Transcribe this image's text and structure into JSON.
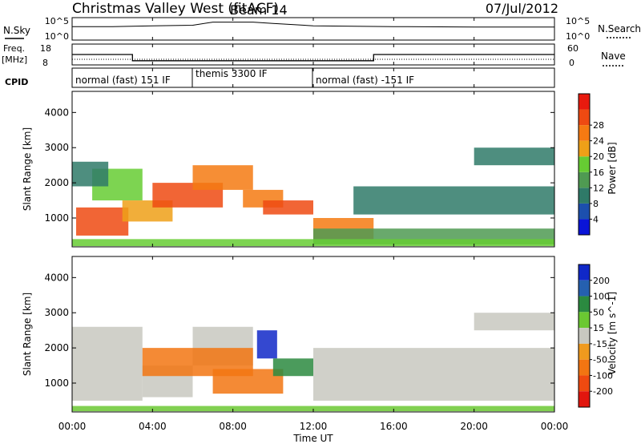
{
  "header": {
    "title": "Christmas Valley West (fitACF)",
    "beam": "Beam 14",
    "date": "07/Jul/2012"
  },
  "panels": {
    "nsky": {
      "label": "N.Sky",
      "right_label": "N.Search",
      "y_ticks": [
        "10^5",
        "10^0"
      ],
      "y_ticks_right": [
        "10^5",
        "10^0"
      ]
    },
    "freq": {
      "label_line1": "Freq.",
      "label_line2": "[MHz]",
      "right_label": "Nave",
      "y_ticks": [
        "18",
        "8"
      ],
      "y_ticks_right": [
        "60",
        "0"
      ]
    },
    "cpid": {
      "label": "CPID",
      "segments": [
        {
          "label": "normal (fast) 151 IF"
        },
        {
          "label": "themis 3300 IF"
        },
        {
          "label": "normal (fast) -151 IF"
        }
      ]
    }
  },
  "x_axis": {
    "label": "Time UT",
    "ticks": [
      "00:00",
      "04:00",
      "08:00",
      "12:00",
      "16:00",
      "20:00",
      "00:00"
    ]
  },
  "chart_data": [
    {
      "type": "line",
      "title": "",
      "ylabel": "N.Sky",
      "series": [
        {
          "name": "N.Sky",
          "x": [
            0.0,
            2.0,
            4.0,
            6.0,
            7.0,
            8.0,
            9.0,
            10.0,
            12.0,
            16.0,
            20.0,
            24.0
          ],
          "values": [
            1000,
            1000,
            1500,
            2000,
            10000,
            10000,
            10000,
            5000,
            1500,
            1000,
            800,
            800
          ]
        }
      ],
      "ylim": [
        "10^0",
        "10^5"
      ]
    },
    {
      "type": "line",
      "title": "",
      "ylabel": "Freq. [MHz]",
      "series": [
        {
          "name": "Freq",
          "x": [
            0.0,
            3.0,
            3.0,
            15.0,
            15.0,
            24.0
          ],
          "values": [
            13,
            13,
            10,
            10,
            13,
            13
          ]
        }
      ],
      "ylim": [
        8,
        18
      ]
    },
    {
      "type": "heatmap",
      "title": "",
      "xlabel": "",
      "ylabel": "Slant Range [km]",
      "xlim": [
        0,
        24
      ],
      "ylim": [
        180,
        4600
      ],
      "y_ticks": [
        1000,
        2000,
        3000,
        4000
      ],
      "colorbar": {
        "label": "Power [dB]",
        "ticks": [
          4,
          8,
          12,
          16,
          20,
          24,
          28
        ],
        "colors": [
          "#0a14d8",
          "#1c4fae",
          "#2f7a68",
          "#4f9a52",
          "#66cc33",
          "#eea018",
          "#f57a12",
          "#ee4a12",
          "#e81a0e"
        ]
      },
      "regions": [
        {
          "t0": 0.2,
          "t1": 2.8,
          "r0": 500,
          "r1": 1300,
          "value": 28
        },
        {
          "t0": 1.0,
          "t1": 3.5,
          "r0": 1500,
          "r1": 2400,
          "value": 16
        },
        {
          "t0": 0.0,
          "t1": 1.8,
          "r0": 1900,
          "r1": 2600,
          "value": 10
        },
        {
          "t0": 2.5,
          "t1": 5.0,
          "r0": 900,
          "r1": 1500,
          "value": 20
        },
        {
          "t0": 4.0,
          "t1": 7.5,
          "r0": 1300,
          "r1": 2000,
          "value": 28
        },
        {
          "t0": 6.0,
          "t1": 9.0,
          "r0": 1800,
          "r1": 2500,
          "value": 26
        },
        {
          "t0": 8.5,
          "t1": 10.5,
          "r0": 1300,
          "r1": 1800,
          "value": 24
        },
        {
          "t0": 9.5,
          "t1": 12.0,
          "r0": 1100,
          "r1": 1500,
          "value": 28
        },
        {
          "t0": 12.0,
          "t1": 15.0,
          "r0": 400,
          "r1": 1000,
          "value": 26
        },
        {
          "t0": 12.0,
          "t1": 24.0,
          "r0": 250,
          "r1": 700,
          "value": 14
        },
        {
          "t0": 14.0,
          "t1": 24.0,
          "r0": 1100,
          "r1": 1900,
          "value": 8
        },
        {
          "t0": 20.0,
          "t1": 24.0,
          "r0": 2500,
          "r1": 3000,
          "value": 8
        },
        {
          "t0": 0.0,
          "t1": 24.0,
          "r0": 200,
          "r1": 400,
          "value": 16
        }
      ]
    },
    {
      "type": "heatmap",
      "title": "",
      "xlabel": "Time UT",
      "ylabel": "Slant Range [km]",
      "xlim": [
        0,
        24
      ],
      "ylim": [
        180,
        4600
      ],
      "y_ticks": [
        1000,
        2000,
        3000,
        4000
      ],
      "colorbar": {
        "label": "Velocity [m s^-1]",
        "ticks": [
          200,
          100,
          50,
          15,
          -15,
          -50,
          -100,
          -200
        ],
        "colors": [
          "#1028c8",
          "#2560b0",
          "#2b8a40",
          "#6bc832",
          "#c8c8c0",
          "#f09a1e",
          "#f27512",
          "#ef4a10",
          "#e2160e"
        ]
      },
      "regions": [
        {
          "t0": 0.0,
          "t1": 3.5,
          "r0": 500,
          "r1": 2600,
          "value": 0
        },
        {
          "t0": 3.5,
          "t1": 6.0,
          "r0": 600,
          "r1": 1500,
          "value": 0
        },
        {
          "t0": 6.0,
          "t1": 9.0,
          "r0": 1500,
          "r1": 2600,
          "value": 0
        },
        {
          "t0": 3.5,
          "t1": 9.0,
          "r0": 1200,
          "r1": 2000,
          "value": -60
        },
        {
          "t0": 7.0,
          "t1": 10.5,
          "r0": 700,
          "r1": 1400,
          "value": -60
        },
        {
          "t0": 9.2,
          "t1": 10.2,
          "r0": 1700,
          "r1": 2500,
          "value": 220
        },
        {
          "t0": 10.0,
          "t1": 12.0,
          "r0": 1200,
          "r1": 1700,
          "value": 60
        },
        {
          "t0": 12.0,
          "t1": 24.0,
          "r0": 500,
          "r1": 2000,
          "value": 0
        },
        {
          "t0": 20.0,
          "t1": 24.0,
          "r0": 2500,
          "r1": 3000,
          "value": 0
        },
        {
          "t0": 0.0,
          "t1": 24.0,
          "r0": 200,
          "r1": 350,
          "value": 30
        }
      ]
    }
  ]
}
